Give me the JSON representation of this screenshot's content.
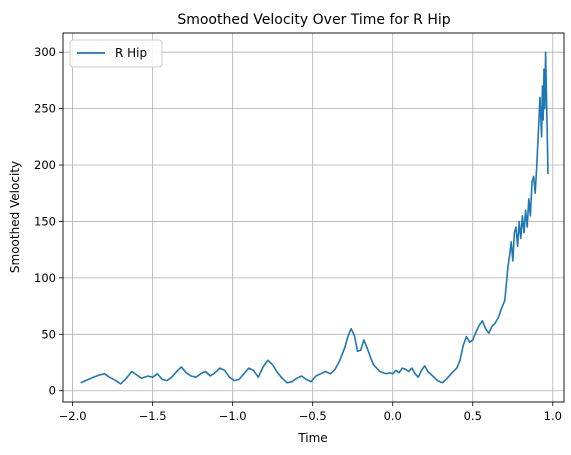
{
  "chart_data": {
    "type": "line",
    "title": "Smoothed Velocity Over Time for R Hip",
    "xlabel": "Time",
    "ylabel": "Smoothed Velocity",
    "xlim": [
      -2.06,
      1.07
    ],
    "ylim": [
      -10,
      317
    ],
    "xticks": [
      "-2.0",
      "-1.5",
      "-1.0",
      "-0.5",
      "0.0",
      "0.5",
      "1.0"
    ],
    "yticks": [
      "0",
      "50",
      "100",
      "150",
      "200",
      "250",
      "300"
    ],
    "grid": true,
    "legend_position": "top-left",
    "series": [
      {
        "name": "R Hip",
        "color": "#1f77b4",
        "x": [
          -1.95,
          -1.9,
          -1.87,
          -1.83,
          -1.8,
          -1.77,
          -1.73,
          -1.7,
          -1.67,
          -1.63,
          -1.6,
          -1.57,
          -1.53,
          -1.5,
          -1.47,
          -1.44,
          -1.41,
          -1.38,
          -1.35,
          -1.32,
          -1.29,
          -1.26,
          -1.23,
          -1.2,
          -1.17,
          -1.14,
          -1.11,
          -1.08,
          -1.05,
          -1.02,
          -0.99,
          -0.96,
          -0.93,
          -0.9,
          -0.87,
          -0.84,
          -0.81,
          -0.78,
          -0.75,
          -0.72,
          -0.69,
          -0.66,
          -0.63,
          -0.6,
          -0.57,
          -0.54,
          -0.51,
          -0.48,
          -0.45,
          -0.42,
          -0.39,
          -0.36,
          -0.33,
          -0.3,
          -0.28,
          -0.26,
          -0.24,
          -0.22,
          -0.2,
          -0.18,
          -0.16,
          -0.14,
          -0.12,
          -0.1,
          -0.08,
          -0.06,
          -0.04,
          -0.02,
          0.0,
          0.02,
          0.04,
          0.06,
          0.08,
          0.1,
          0.12,
          0.14,
          0.16,
          0.18,
          0.2,
          0.22,
          0.25,
          0.28,
          0.31,
          0.34,
          0.37,
          0.4,
          0.42,
          0.44,
          0.46,
          0.48,
          0.5,
          0.52,
          0.54,
          0.56,
          0.58,
          0.6,
          0.62,
          0.64,
          0.66,
          0.68,
          0.7,
          0.71,
          0.72,
          0.73,
          0.74,
          0.75,
          0.76,
          0.77,
          0.78,
          0.79,
          0.8,
          0.81,
          0.82,
          0.83,
          0.84,
          0.85,
          0.86,
          0.87,
          0.88,
          0.89,
          0.9,
          0.91,
          0.92,
          0.93,
          0.935,
          0.94,
          0.945,
          0.95,
          0.955,
          0.96,
          0.965,
          0.97
        ],
        "y": [
          7,
          10,
          12,
          14,
          15,
          12,
          9,
          6,
          10,
          17,
          14,
          11,
          13,
          12,
          15,
          10,
          9,
          12,
          17,
          21,
          16,
          13,
          12,
          15,
          17,
          13,
          16,
          20,
          18,
          12,
          9,
          10,
          15,
          20,
          18,
          12,
          21,
          27,
          23,
          16,
          11,
          7,
          8,
          11,
          13,
          10,
          8,
          13,
          15,
          17,
          15,
          19,
          27,
          38,
          48,
          55,
          49,
          35,
          36,
          45,
          38,
          30,
          23,
          20,
          17,
          16,
          15,
          16,
          15,
          18,
          16,
          20,
          19,
          17,
          20,
          15,
          12,
          18,
          22,
          17,
          13,
          9,
          7,
          11,
          16,
          20,
          27,
          40,
          48,
          43,
          45,
          52,
          58,
          62,
          55,
          51,
          57,
          60,
          65,
          73,
          80,
          95,
          110,
          120,
          132,
          115,
          140,
          145,
          128,
          150,
          135,
          155,
          140,
          160,
          145,
          170,
          155,
          185,
          190,
          175,
          200,
          230,
          260,
          225,
          270,
          240,
          285,
          250,
          300,
          265,
          230,
          192
        ]
      }
    ]
  }
}
